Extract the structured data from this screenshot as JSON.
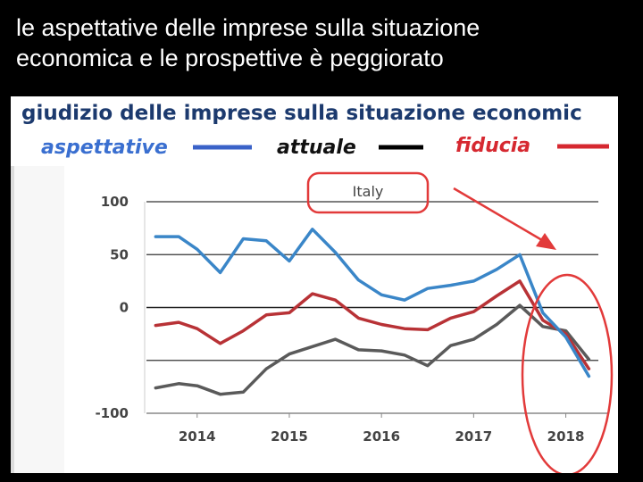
{
  "slide": {
    "title_line1": "le aspettative delle imprese sulla situazione",
    "title_line2": "economica e le prospettive è peggiorato"
  },
  "chart_data": {
    "type": "line",
    "title": "giudizio delle imprese sulla situazione economic",
    "annotation": "Italy",
    "legend_position": "top",
    "x_ticks": [
      "2014",
      "2015",
      "2016",
      "2017",
      "2018"
    ],
    "y_ticks": [
      "100",
      "50",
      "0",
      "-100"
    ],
    "ylim": [
      -100,
      100
    ],
    "xlim": [
      2013.45,
      2018.45
    ],
    "grid": "horizontal",
    "series": [
      {
        "name": "aspettative",
        "color": "#3a86c8",
        "x": [
          2013.55,
          2013.8,
          2014.0,
          2014.25,
          2014.5,
          2014.75,
          2015.0,
          2015.25,
          2015.5,
          2015.75,
          2016.0,
          2016.25,
          2016.5,
          2016.75,
          2017.0,
          2017.25,
          2017.5,
          2017.75,
          2018.0,
          2018.25
        ],
        "values": [
          67,
          67,
          55,
          33,
          65,
          63,
          44,
          74,
          52,
          26,
          12,
          7,
          18,
          21,
          25,
          36,
          50,
          -5,
          -28,
          -65
        ]
      },
      {
        "name": "attuale",
        "color": "#5a5a5a",
        "x": [
          2013.55,
          2013.8,
          2014.0,
          2014.25,
          2014.5,
          2014.75,
          2015.0,
          2015.25,
          2015.5,
          2015.75,
          2016.0,
          2016.25,
          2016.5,
          2016.75,
          2017.0,
          2017.25,
          2017.5,
          2017.75,
          2018.0,
          2018.25
        ],
        "values": [
          -76,
          -72,
          -74,
          -82,
          -80,
          -58,
          -44,
          -37,
          -30,
          -40,
          -41,
          -45,
          -55,
          -36,
          -30,
          -16,
          2,
          -18,
          -22,
          -49
        ]
      },
      {
        "name": "fiducia",
        "color": "#b83236",
        "x": [
          2013.55,
          2013.8,
          2014.0,
          2014.25,
          2014.5,
          2014.75,
          2015.0,
          2015.25,
          2015.5,
          2015.75,
          2016.0,
          2016.25,
          2016.5,
          2016.75,
          2017.0,
          2017.25,
          2017.5,
          2017.75,
          2018.0,
          2018.25
        ],
        "values": [
          -17,
          -14,
          -20,
          -34,
          -22,
          -7,
          -5,
          13,
          7,
          -10,
          -16,
          -20,
          -21,
          -10,
          -4,
          11,
          25,
          -12,
          -25,
          -58
        ]
      }
    ]
  }
}
